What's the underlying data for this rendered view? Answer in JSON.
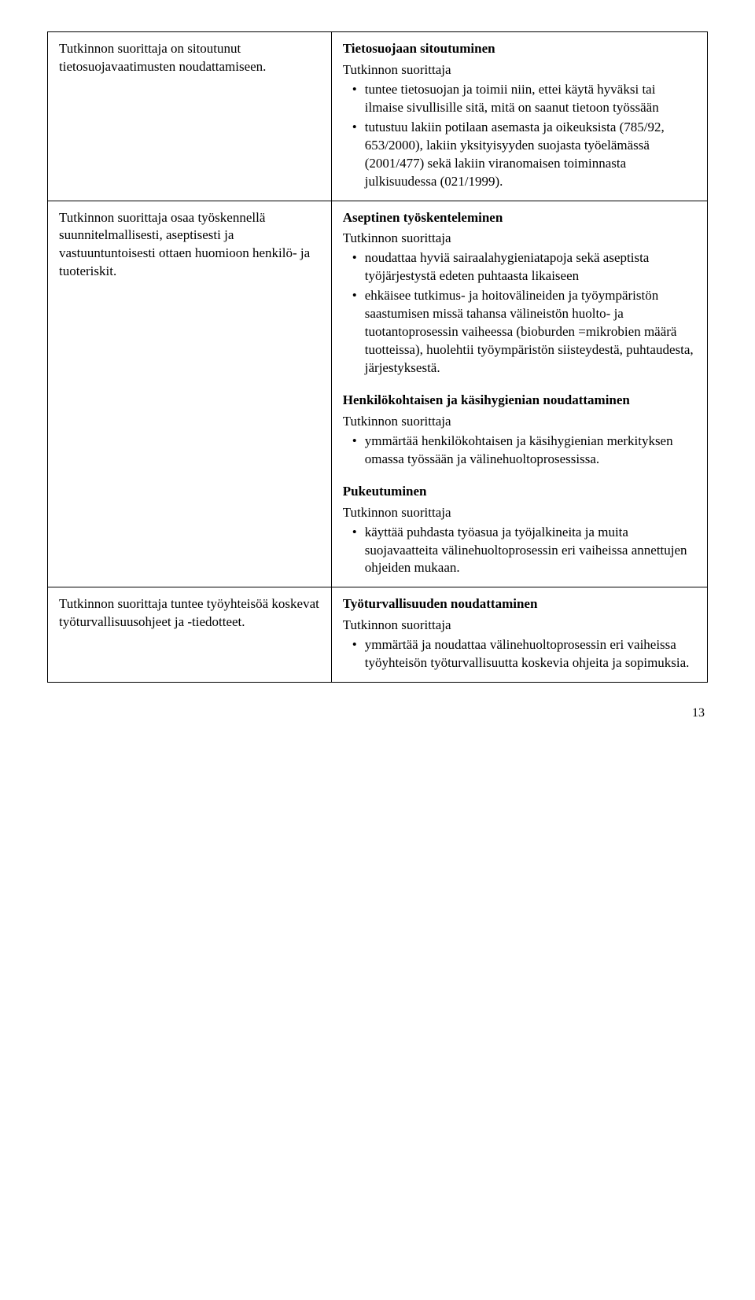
{
  "row1": {
    "left": "Tutkinnon suorittaja on sitoutunut tietosuojavaatimusten noudattamiseen.",
    "right": {
      "heading": "Tietosuojaan sitoutuminen",
      "intro": "Tutkinnon suorittaja",
      "bullets": [
        "tuntee tietosuojan ja toimii niin, ettei käytä hyväksi tai ilmaise sivullisille sitä, mitä on saanut tietoon työssään",
        "tutustuu lakiin potilaan asemasta ja oikeuksista (785/92, 653/2000), lakiin yksityisyyden suojasta työelämässä (2001/477) sekä lakiin viranomaisen toiminnasta julkisuudessa (021/1999)."
      ]
    }
  },
  "row2": {
    "left": "Tutkinnon suorittaja osaa työskennellä suunnitelmallisesti, aseptisesti ja vastuuntuntoisesti ottaen huomioon henkilö- ja tuoteriskit.",
    "right": {
      "block1": {
        "heading": "Aseptinen työskenteleminen",
        "intro": "Tutkinnon suorittaja",
        "bullets": [
          "noudattaa hyviä sairaalahygieniatapoja sekä aseptista työjärjestystä edeten puhtaasta likaiseen",
          "ehkäisee tutkimus- ja hoitovälineiden ja työympäristön saastumisen missä tahansa välineistön huolto- ja tuotantoprosessin vaiheessa (bioburden =mikrobien määrä tuotteissa), huolehtii työympäristön siisteydestä, puhtaudesta, järjestyksestä."
        ]
      },
      "block2": {
        "heading": "Henkilökohtaisen ja käsihygienian noudattaminen",
        "intro": "Tutkinnon suorittaja",
        "bullets": [
          "ymmärtää henkilökohtaisen ja käsihygienian merkityksen omassa työssään ja välinehuoltoprosessissa."
        ]
      },
      "block3": {
        "heading": "Pukeutuminen",
        "intro": "Tutkinnon suorittaja",
        "bullets": [
          "käyttää puhdasta työasua ja työjalkineita ja muita suojavaatteita välinehuoltoprosessin eri vaiheissa annettujen ohjeiden mukaan."
        ]
      }
    }
  },
  "row3": {
    "left": "Tutkinnon suorittaja tuntee työyhteisöä koskevat työturvallisuusohjeet ja -tiedotteet.",
    "right": {
      "heading": "Työturvallisuuden noudattaminen",
      "intro": "Tutkinnon suorittaja",
      "bullets": [
        "ymmärtää ja noudattaa välinehuolto­prosessin eri vaiheissa työyhteisön työturvallisuutta koskevia ohjeita ja sopimuksia."
      ]
    }
  },
  "page_number": "13"
}
